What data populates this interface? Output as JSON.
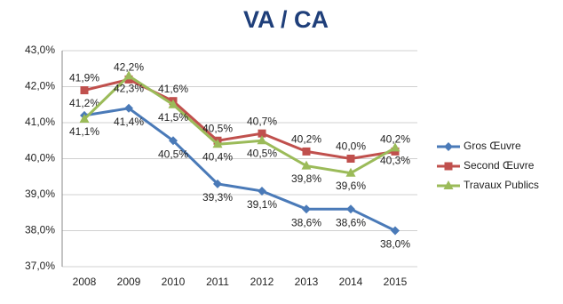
{
  "chart_data": {
    "type": "line",
    "title": "VA / CA",
    "categories": [
      "2008",
      "2009",
      "2010",
      "2011",
      "2012",
      "2013",
      "2014",
      "2015"
    ],
    "series": [
      {
        "name": "Gros Œuvre",
        "color": "#4a7ab8",
        "marker": "diamond",
        "values": [
          41.2,
          41.4,
          40.5,
          39.3,
          39.1,
          38.6,
          38.6,
          38.0
        ],
        "value_labels": [
          "41,2%",
          "41,4%",
          "40,5%",
          "39,3%",
          "39,1%",
          "38,6%",
          "38,6%",
          "38,0%"
        ]
      },
      {
        "name": "Second Œuvre",
        "color": "#c0504d",
        "marker": "square",
        "values": [
          41.9,
          42.2,
          41.6,
          40.5,
          40.7,
          40.2,
          40.0,
          40.2
        ],
        "value_labels": [
          "41,9%",
          "42,2%",
          "41,6%",
          "40,5%",
          "40,7%",
          "40,2%",
          "40,0%",
          "40,2%"
        ]
      },
      {
        "name": "Travaux Publics",
        "color": "#9bbb59",
        "marker": "triangle",
        "values": [
          41.1,
          42.3,
          41.5,
          40.4,
          40.5,
          39.8,
          39.6,
          40.3
        ],
        "value_labels": [
          "41,1%",
          "42,3%",
          "41,5%",
          "40,4%",
          "40,5%",
          "39,8%",
          "39,6%",
          "40,3%"
        ]
      }
    ],
    "ylim": [
      37.0,
      43.0
    ],
    "yticks": [
      {
        "value": 37.0,
        "label": "37,0%"
      },
      {
        "value": 38.0,
        "label": "38,0%"
      },
      {
        "value": 39.0,
        "label": "39,0%"
      },
      {
        "value": 40.0,
        "label": "40,0%"
      },
      {
        "value": 41.0,
        "label": "41,0%"
      },
      {
        "value": 42.0,
        "label": "42,0%"
      },
      {
        "value": 43.0,
        "label": "43,0%"
      }
    ],
    "grid": true,
    "legend": "right"
  }
}
